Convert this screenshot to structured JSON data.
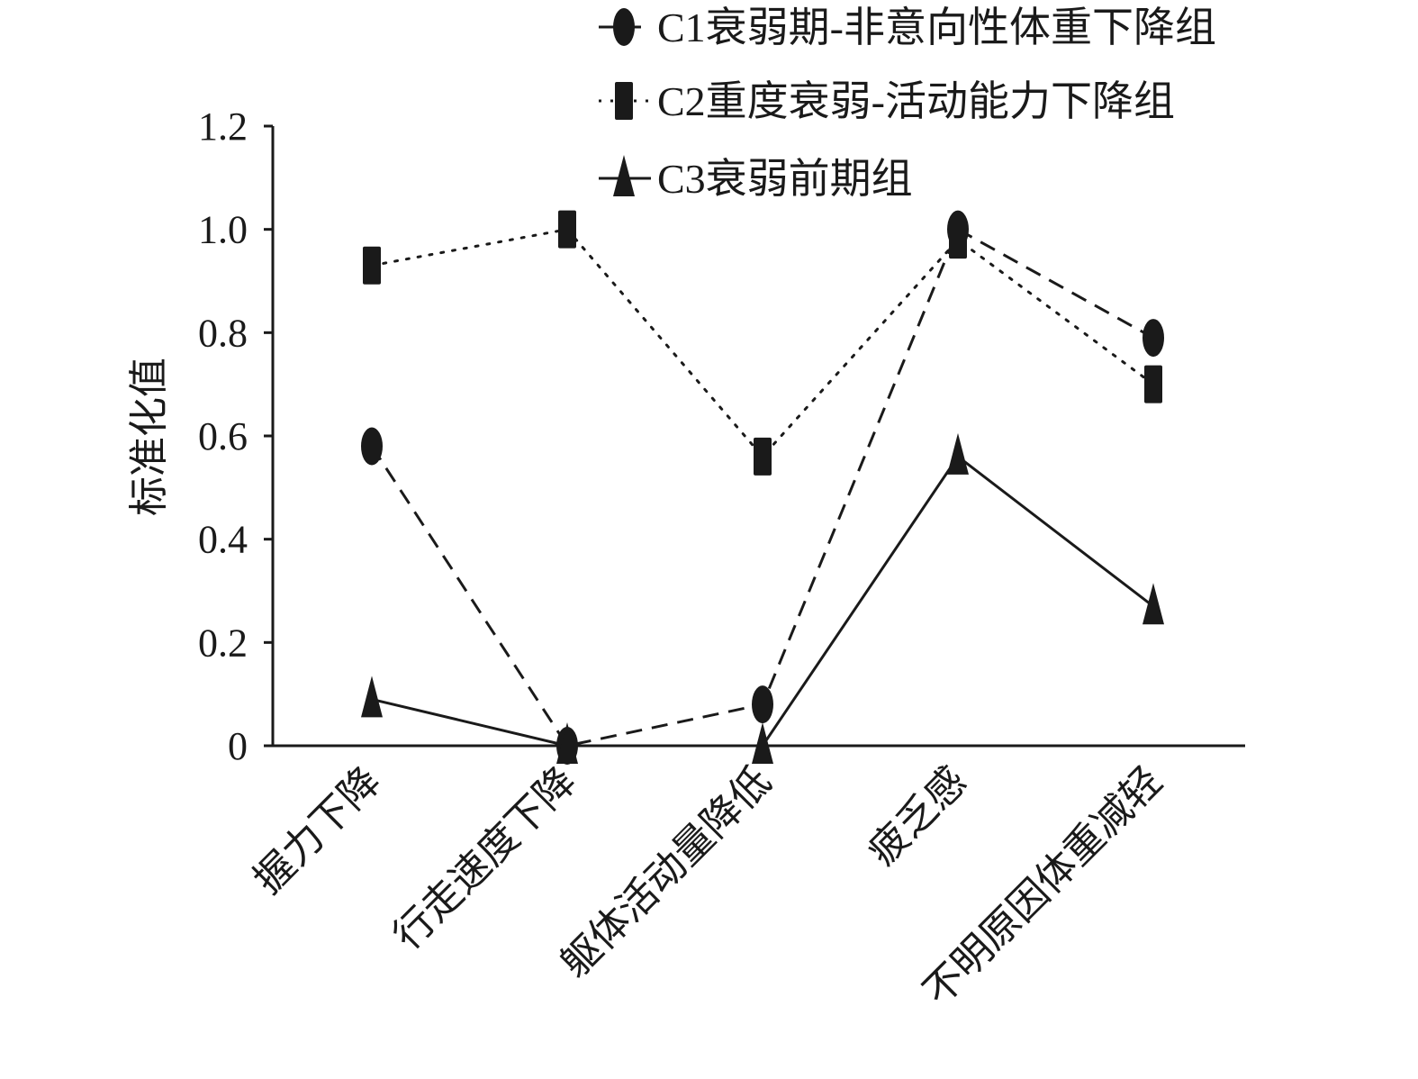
{
  "chart_data": {
    "type": "line",
    "title": "",
    "xlabel": "",
    "ylabel": "标准化值",
    "ylim": [
      0,
      1.2
    ],
    "yticks": [
      "0",
      "0.2",
      "0.4",
      "0.6",
      "0.8",
      "1.0",
      "1.2"
    ],
    "grid": false,
    "legend_position": "top-right",
    "categories": [
      "握力下降",
      "行走速度下降",
      "躯体活动量降低",
      "疲乏感",
      "不明原因体重减轻"
    ],
    "series": [
      {
        "name": "C1衰弱期-非意向性体重下降组",
        "values": [
          0.58,
          0.0,
          0.08,
          1.0,
          0.79
        ],
        "marker": "ellipse",
        "line": "dashed",
        "color": "#1a1a1a"
      },
      {
        "name": "C2重度衰弱-活动能力下降组",
        "values": [
          0.93,
          1.0,
          0.56,
          0.98,
          0.7
        ],
        "marker": "square",
        "line": "dotted",
        "color": "#1a1a1a"
      },
      {
        "name": "C3衰弱前期组",
        "values": [
          0.09,
          0.0,
          0.0,
          0.56,
          0.27
        ],
        "marker": "triangle",
        "line": "solid",
        "color": "#1a1a1a"
      }
    ]
  }
}
